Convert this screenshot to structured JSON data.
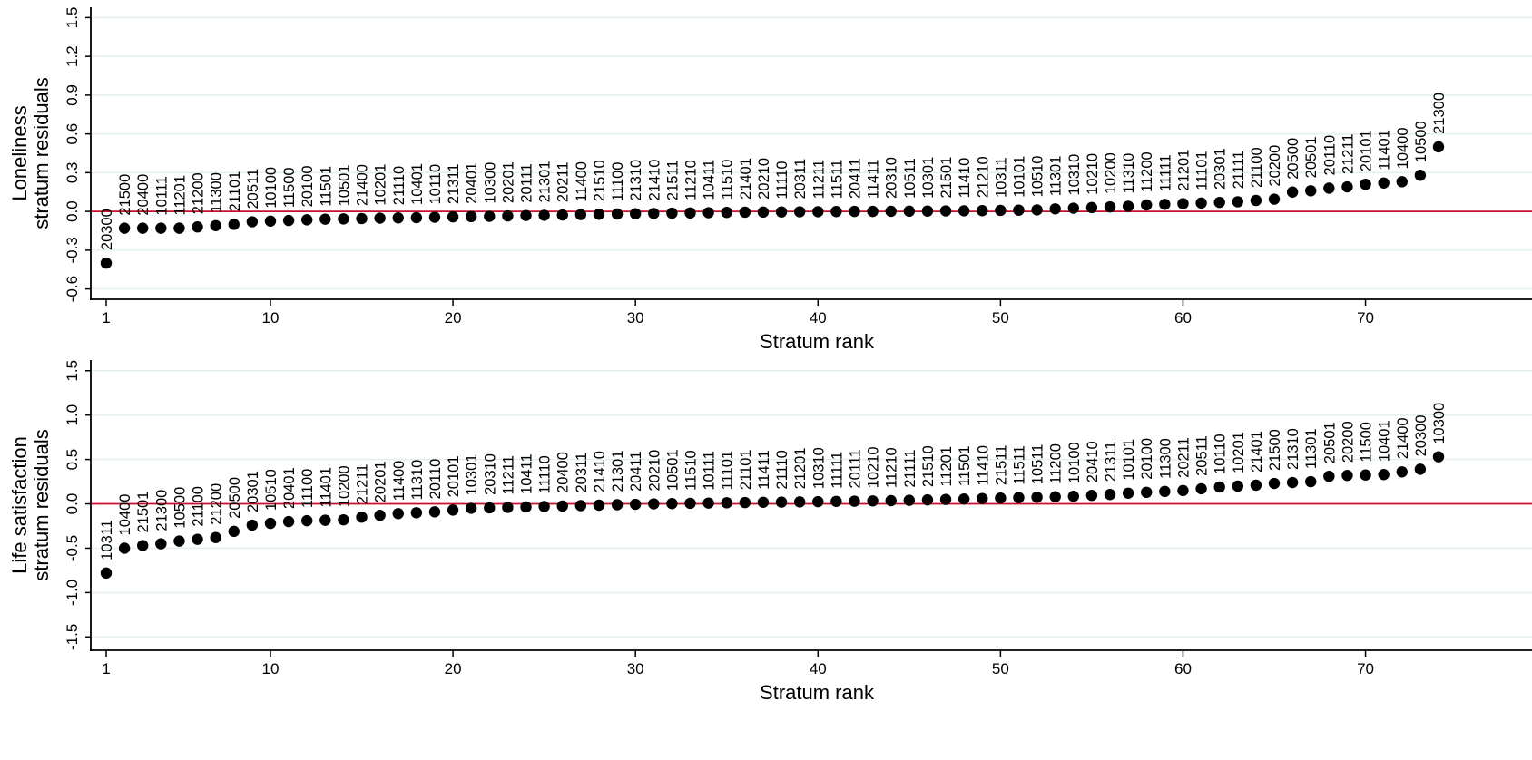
{
  "chart_data": [
    {
      "type": "scatter",
      "xlabel": "Stratum rank",
      "ylabel": [
        "Loneliness",
        "stratum residuals"
      ],
      "xticks": [
        1,
        10,
        20,
        30,
        40,
        50,
        60,
        70
      ],
      "yticks": [
        -0.6,
        -0.3,
        0.0,
        0.3,
        0.6,
        0.9,
        1.2,
        1.5
      ],
      "ytick_labels": [
        "-0.6",
        "-0.3",
        "0.0",
        "0.3",
        "0.6",
        "0.9",
        "1.2",
        "1.5"
      ],
      "xlim": [
        0.5,
        73
      ],
      "ylim": [
        -0.68,
        1.58
      ],
      "reference_line": 0,
      "reference_color": "#c8102e",
      "grid": true,
      "points": [
        {
          "label": "20300",
          "value": -0.4
        },
        {
          "label": "21500",
          "value": -0.13
        },
        {
          "label": "20400",
          "value": -0.13
        },
        {
          "label": "10111",
          "value": -0.13
        },
        {
          "label": "11201",
          "value": -0.13
        },
        {
          "label": "21200",
          "value": -0.12
        },
        {
          "label": "11300",
          "value": -0.11
        },
        {
          "label": "21101",
          "value": -0.1
        },
        {
          "label": "20511",
          "value": -0.08
        },
        {
          "label": "10100",
          "value": -0.075
        },
        {
          "label": "11500",
          "value": -0.07
        },
        {
          "label": "20100",
          "value": -0.065
        },
        {
          "label": "11501",
          "value": -0.06
        },
        {
          "label": "10501",
          "value": -0.058
        },
        {
          "label": "21400",
          "value": -0.055
        },
        {
          "label": "10201",
          "value": -0.052
        },
        {
          "label": "21110",
          "value": -0.05
        },
        {
          "label": "10401",
          "value": -0.048
        },
        {
          "label": "10110",
          "value": -0.045
        },
        {
          "label": "21311",
          "value": -0.042
        },
        {
          "label": "20401",
          "value": -0.04
        },
        {
          "label": "10300",
          "value": -0.038
        },
        {
          "label": "20201",
          "value": -0.035
        },
        {
          "label": "20111",
          "value": -0.032
        },
        {
          "label": "21301",
          "value": -0.03
        },
        {
          "label": "20211",
          "value": -0.028
        },
        {
          "label": "11400",
          "value": -0.025
        },
        {
          "label": "21510",
          "value": -0.022
        },
        {
          "label": "11100",
          "value": -0.02
        },
        {
          "label": "21310",
          "value": -0.018
        },
        {
          "label": "21410",
          "value": -0.016
        },
        {
          "label": "21511",
          "value": -0.014
        },
        {
          "label": "11210",
          "value": -0.012
        },
        {
          "label": "10411",
          "value": -0.01
        },
        {
          "label": "11510",
          "value": -0.008
        },
        {
          "label": "21401",
          "value": -0.006
        },
        {
          "label": "20210",
          "value": -0.005
        },
        {
          "label": "11110",
          "value": -0.004
        },
        {
          "label": "20311",
          "value": -0.003
        },
        {
          "label": "11211",
          "value": -0.002
        },
        {
          "label": "11511",
          "value": -0.001
        },
        {
          "label": "20411",
          "value": 0.0
        },
        {
          "label": "11411",
          "value": 0.0
        },
        {
          "label": "20310",
          "value": 0.001
        },
        {
          "label": "10511",
          "value": 0.002
        },
        {
          "label": "10301",
          "value": 0.003
        },
        {
          "label": "21501",
          "value": 0.004
        },
        {
          "label": "11410",
          "value": 0.005
        },
        {
          "label": "21210",
          "value": 0.006
        },
        {
          "label": "10311",
          "value": 0.008
        },
        {
          "label": "10101",
          "value": 0.01
        },
        {
          "label": "10510",
          "value": 0.012
        },
        {
          "label": "11301",
          "value": 0.02
        },
        {
          "label": "10310",
          "value": 0.025
        },
        {
          "label": "10210",
          "value": 0.03
        },
        {
          "label": "10200",
          "value": 0.035
        },
        {
          "label": "11310",
          "value": 0.04
        },
        {
          "label": "11200",
          "value": 0.05
        },
        {
          "label": "11111",
          "value": 0.055
        },
        {
          "label": "21201",
          "value": 0.06
        },
        {
          "label": "11101",
          "value": 0.065
        },
        {
          "label": "20301",
          "value": 0.07
        },
        {
          "label": "21111",
          "value": 0.075
        },
        {
          "label": "21100",
          "value": 0.085
        },
        {
          "label": "20200",
          "value": 0.095
        },
        {
          "label": "20500",
          "value": 0.15
        },
        {
          "label": "20501",
          "value": 0.16
        },
        {
          "label": "20110",
          "value": 0.18
        },
        {
          "label": "21211",
          "value": 0.19
        },
        {
          "label": "20101",
          "value": 0.21
        },
        {
          "label": "11401",
          "value": 0.22
        },
        {
          "label": "10400",
          "value": 0.23
        },
        {
          "label": "10500",
          "value": 0.28
        },
        {
          "label": "21300",
          "value": 0.5
        }
      ]
    },
    {
      "type": "scatter",
      "xlabel": "Stratum rank",
      "ylabel": [
        "Life satisfaction",
        "stratum residuals"
      ],
      "xticks": [
        1,
        10,
        20,
        30,
        40,
        50,
        60,
        70
      ],
      "yticks": [
        -1.5,
        -1.0,
        -0.5,
        0.0,
        0.5,
        1.0,
        1.5
      ],
      "ytick_labels": [
        "-1.5",
        "-1.0",
        "-0.5",
        "0.0",
        "0.5",
        "1.0",
        "1.5"
      ],
      "xlim": [
        0.5,
        73
      ],
      "ylim": [
        -1.65,
        1.62
      ],
      "reference_line": 0,
      "reference_color": "#c8102e",
      "grid": true,
      "points": [
        {
          "label": "10311",
          "value": -0.78
        },
        {
          "label": "10400",
          "value": -0.5
        },
        {
          "label": "21501",
          "value": -0.47
        },
        {
          "label": "21300",
          "value": -0.45
        },
        {
          "label": "10500",
          "value": -0.42
        },
        {
          "label": "21100",
          "value": -0.4
        },
        {
          "label": "21200",
          "value": -0.38
        },
        {
          "label": "20500",
          "value": -0.31
        },
        {
          "label": "20301",
          "value": -0.24
        },
        {
          "label": "10510",
          "value": -0.22
        },
        {
          "label": "20401",
          "value": -0.2
        },
        {
          "label": "11100",
          "value": -0.19
        },
        {
          "label": "11401",
          "value": -0.185
        },
        {
          "label": "10200",
          "value": -0.18
        },
        {
          "label": "21211",
          "value": -0.15
        },
        {
          "label": "20201",
          "value": -0.13
        },
        {
          "label": "11400",
          "value": -0.11
        },
        {
          "label": "11310",
          "value": -0.1
        },
        {
          "label": "20110",
          "value": -0.09
        },
        {
          "label": "20101",
          "value": -0.07
        },
        {
          "label": "10301",
          "value": -0.05
        },
        {
          "label": "20310",
          "value": -0.045
        },
        {
          "label": "11211",
          "value": -0.04
        },
        {
          "label": "10411",
          "value": -0.035
        },
        {
          "label": "11110",
          "value": -0.03
        },
        {
          "label": "20400",
          "value": -0.025
        },
        {
          "label": "20311",
          "value": -0.02
        },
        {
          "label": "21410",
          "value": -0.015
        },
        {
          "label": "21301",
          "value": -0.01
        },
        {
          "label": "20411",
          "value": -0.005
        },
        {
          "label": "20210",
          "value": 0.0
        },
        {
          "label": "10501",
          "value": 0.003
        },
        {
          "label": "11510",
          "value": 0.006
        },
        {
          "label": "10111",
          "value": 0.009
        },
        {
          "label": "11101",
          "value": 0.012
        },
        {
          "label": "21101",
          "value": 0.015
        },
        {
          "label": "11411",
          "value": 0.018
        },
        {
          "label": "21110",
          "value": 0.02
        },
        {
          "label": "21201",
          "value": 0.022
        },
        {
          "label": "10310",
          "value": 0.025
        },
        {
          "label": "11111",
          "value": 0.028
        },
        {
          "label": "20111",
          "value": 0.03
        },
        {
          "label": "10210",
          "value": 0.033
        },
        {
          "label": "11210",
          "value": 0.036
        },
        {
          "label": "21111",
          "value": 0.04
        },
        {
          "label": "21510",
          "value": 0.045
        },
        {
          "label": "11201",
          "value": 0.05
        },
        {
          "label": "11501",
          "value": 0.055
        },
        {
          "label": "11410",
          "value": 0.06
        },
        {
          "label": "21511",
          "value": 0.065
        },
        {
          "label": "11511",
          "value": 0.07
        },
        {
          "label": "10511",
          "value": 0.075
        },
        {
          "label": "11200",
          "value": 0.08
        },
        {
          "label": "10100",
          "value": 0.085
        },
        {
          "label": "20410",
          "value": 0.095
        },
        {
          "label": "21311",
          "value": 0.105
        },
        {
          "label": "10101",
          "value": 0.12
        },
        {
          "label": "20100",
          "value": 0.13
        },
        {
          "label": "11300",
          "value": 0.14
        },
        {
          "label": "20211",
          "value": 0.15
        },
        {
          "label": "20511",
          "value": 0.17
        },
        {
          "label": "10110",
          "value": 0.19
        },
        {
          "label": "10201",
          "value": 0.2
        },
        {
          "label": "21401",
          "value": 0.21
        },
        {
          "label": "21500",
          "value": 0.23
        },
        {
          "label": "21310",
          "value": 0.24
        },
        {
          "label": "11301",
          "value": 0.25
        },
        {
          "label": "20501",
          "value": 0.31
        },
        {
          "label": "20200",
          "value": 0.32
        },
        {
          "label": "11500",
          "value": 0.325
        },
        {
          "label": "10401",
          "value": 0.33
        },
        {
          "label": "21400",
          "value": 0.36
        },
        {
          "label": "20300",
          "value": 0.39
        },
        {
          "label": "10300",
          "value": 0.53
        }
      ]
    }
  ]
}
